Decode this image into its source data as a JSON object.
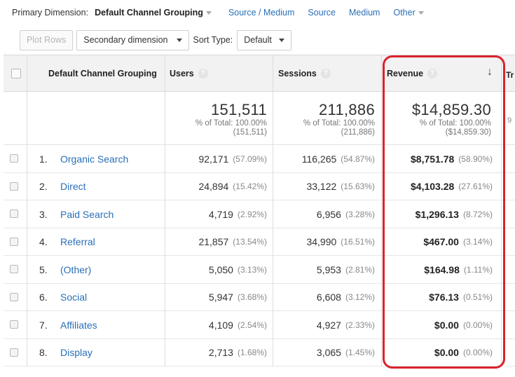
{
  "dimension_bar": {
    "label": "Primary Dimension:",
    "active": "Default Channel Grouping",
    "links": [
      "Source / Medium",
      "Source",
      "Medium",
      "Other"
    ]
  },
  "toolbar": {
    "plot_rows": "Plot Rows",
    "secondary_dimension": "Secondary dimension",
    "sort_type_label": "Sort Type:",
    "sort_type_value": "Default"
  },
  "table": {
    "headers": {
      "dimension": "Default Channel Grouping",
      "users": "Users",
      "sessions": "Sessions",
      "revenue": "Revenue",
      "truncated": "Tr",
      "help_glyph": "?",
      "sort_glyph": "↓"
    },
    "totals": {
      "users": {
        "value": "151,511",
        "sub1": "% of Total: 100.00%",
        "sub2": "(151,511)"
      },
      "sessions": {
        "value": "211,886",
        "sub1": "% of Total: 100.00%",
        "sub2": "(211,886)"
      },
      "revenue": {
        "value": "$14,859.30",
        "sub1": "% of Total: 100.00%",
        "sub2": "($14,859.30)"
      },
      "truncated_sub": "9"
    },
    "rows": [
      {
        "idx": "1.",
        "channel": "Organic Search",
        "users": "92,171",
        "users_pct": "(57.09%)",
        "sessions": "116,265",
        "sessions_pct": "(54.87%)",
        "revenue": "$8,751.78",
        "revenue_pct": "(58.90%)"
      },
      {
        "idx": "2.",
        "channel": "Direct",
        "users": "24,894",
        "users_pct": "(15.42%)",
        "sessions": "33,122",
        "sessions_pct": "(15.63%)",
        "revenue": "$4,103.28",
        "revenue_pct": "(27.61%)"
      },
      {
        "idx": "3.",
        "channel": "Paid Search",
        "users": "4,719",
        "users_pct": "(2.92%)",
        "sessions": "6,956",
        "sessions_pct": "(3.28%)",
        "revenue": "$1,296.13",
        "revenue_pct": "(8.72%)"
      },
      {
        "idx": "4.",
        "channel": "Referral",
        "users": "21,857",
        "users_pct": "(13.54%)",
        "sessions": "34,990",
        "sessions_pct": "(16.51%)",
        "revenue": "$467.00",
        "revenue_pct": "(3.14%)"
      },
      {
        "idx": "5.",
        "channel": "(Other)",
        "users": "5,050",
        "users_pct": "(3.13%)",
        "sessions": "5,953",
        "sessions_pct": "(2.81%)",
        "revenue": "$164.98",
        "revenue_pct": "(1.11%)"
      },
      {
        "idx": "6.",
        "channel": "Social",
        "users": "5,947",
        "users_pct": "(3.68%)",
        "sessions": "6,608",
        "sessions_pct": "(3.12%)",
        "revenue": "$76.13",
        "revenue_pct": "(0.51%)"
      },
      {
        "idx": "7.",
        "channel": "Affiliates",
        "users": "4,109",
        "users_pct": "(2.54%)",
        "sessions": "4,927",
        "sessions_pct": "(2.33%)",
        "revenue": "$0.00",
        "revenue_pct": "(0.00%)"
      },
      {
        "idx": "8.",
        "channel": "Display",
        "users": "2,713",
        "users_pct": "(1.68%)",
        "sessions": "3,065",
        "sessions_pct": "(1.45%)",
        "revenue": "$0.00",
        "revenue_pct": "(0.00%)"
      }
    ]
  },
  "colors": {
    "link": "#2a6fb7",
    "highlight": "#d9232d",
    "header_bg": "#f2f2f2"
  }
}
